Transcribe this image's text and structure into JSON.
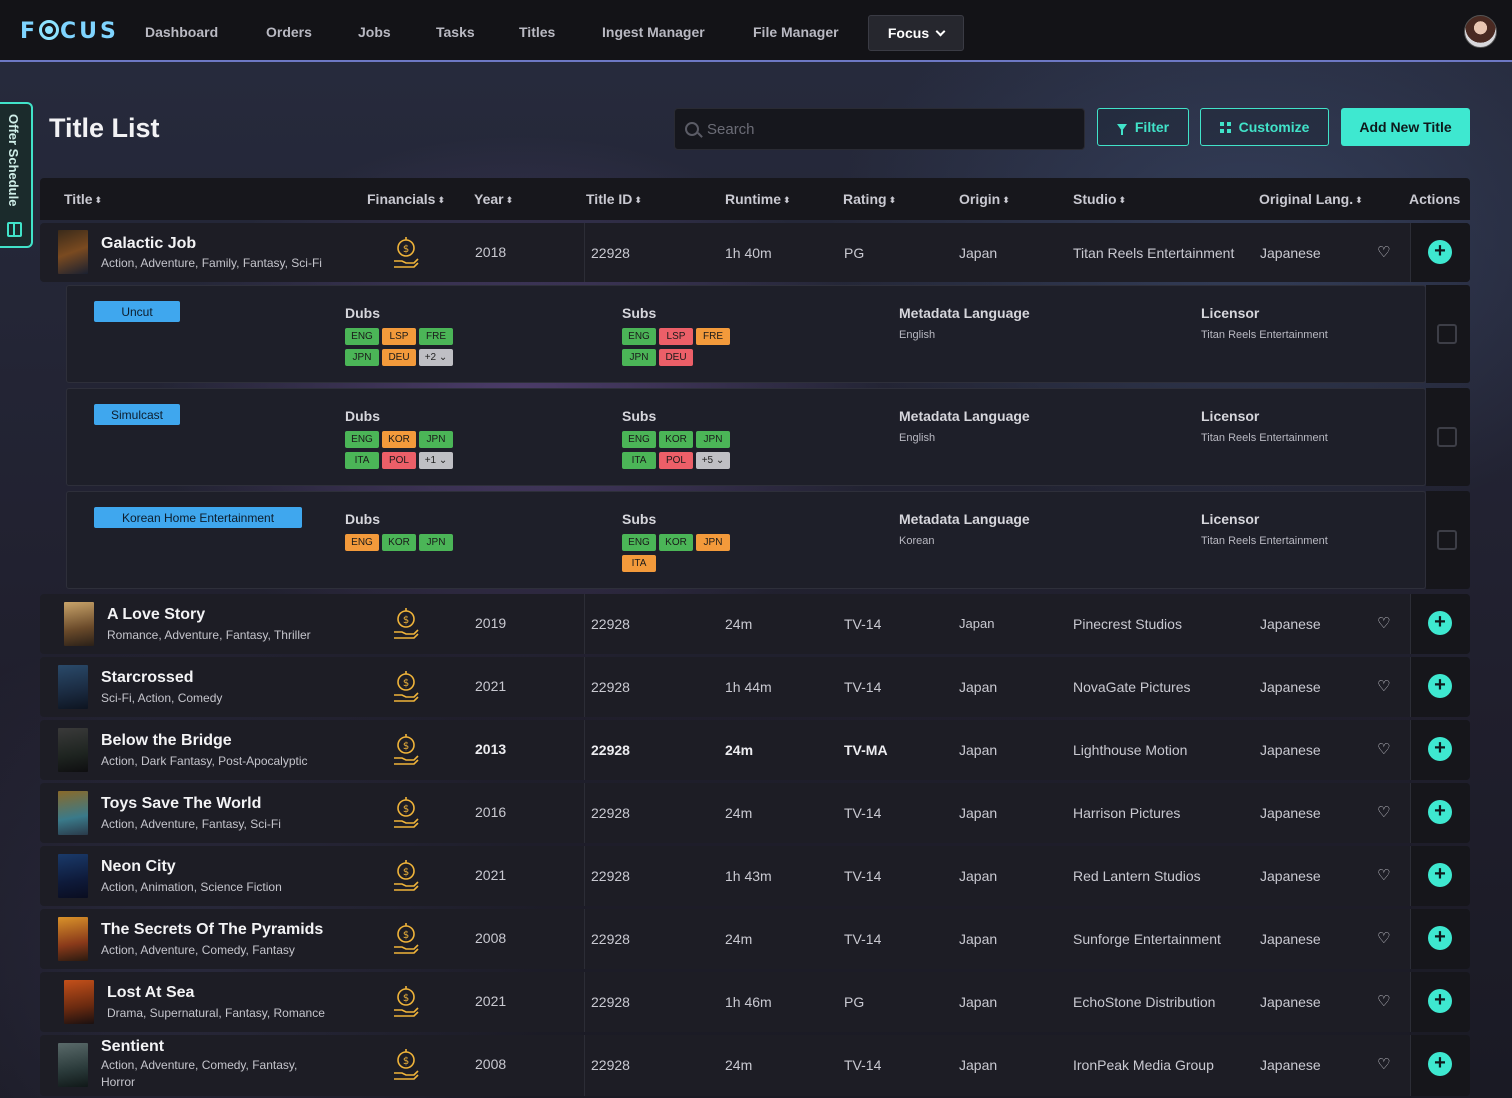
{
  "app": {
    "logo": "FOCUS"
  },
  "nav": {
    "items": [
      "Dashboard",
      "Orders",
      "Jobs",
      "Tasks",
      "Titles",
      "Ingest Manager",
      "File Manager"
    ],
    "active": "Focus"
  },
  "side_tab": {
    "label": "Offer Schedule"
  },
  "page": {
    "title": "Title List"
  },
  "search": {
    "placeholder": "Search"
  },
  "toolbar": {
    "filter": "Filter",
    "customize": "Customize",
    "add": "Add New Title"
  },
  "columns": [
    "Title",
    "Financials",
    "Year",
    "Title ID",
    "Runtime",
    "Rating",
    "Origin",
    "Studio",
    "Original Lang.",
    "Actions"
  ],
  "expanded": {
    "title": "Galactic Job",
    "genres": "Action, Adventure, Family, Fantasy, Sci-Fi",
    "year": "2018",
    "title_id": "22928",
    "runtime": "1h 40m",
    "rating": "PG",
    "origin": "Japan",
    "studio": "Titan Reels Entertainment",
    "lang": "Japanese",
    "offers": [
      {
        "label": "Uncut",
        "dubs_label": "Dubs",
        "dubs": [
          {
            "t": "ENG",
            "c": "g"
          },
          {
            "t": "LSP",
            "c": "o"
          },
          {
            "t": "FRE",
            "c": "g"
          },
          {
            "t": "JPN",
            "c": "g"
          },
          {
            "t": "DEU",
            "c": "o"
          },
          {
            "t": "+2 ⌄",
            "c": "more"
          }
        ],
        "subs_label": "Subs",
        "subs": [
          {
            "t": "ENG",
            "c": "g"
          },
          {
            "t": "LSP",
            "c": "r"
          },
          {
            "t": "FRE",
            "c": "o"
          },
          {
            "t": "JPN",
            "c": "g"
          },
          {
            "t": "DEU",
            "c": "r"
          }
        ],
        "meta_label": "Metadata Language",
        "meta": "English",
        "licensor_label": "Licensor",
        "licensor": "Titan Reels Entertainment"
      },
      {
        "label": "Simulcast",
        "dubs_label": "Dubs",
        "dubs": [
          {
            "t": "ENG",
            "c": "g"
          },
          {
            "t": "KOR",
            "c": "o"
          },
          {
            "t": "JPN",
            "c": "g"
          },
          {
            "t": "ITA",
            "c": "g"
          },
          {
            "t": "POL",
            "c": "r"
          },
          {
            "t": "+1 ⌄",
            "c": "more"
          }
        ],
        "subs_label": "Subs",
        "subs": [
          {
            "t": "ENG",
            "c": "g"
          },
          {
            "t": "KOR",
            "c": "g"
          },
          {
            "t": "JPN",
            "c": "g"
          },
          {
            "t": "ITA",
            "c": "g"
          },
          {
            "t": "POL",
            "c": "r"
          },
          {
            "t": "+5 ⌄",
            "c": "more"
          }
        ],
        "meta_label": "Metadata Language",
        "meta": "English",
        "licensor_label": "Licensor",
        "licensor": "Titan Reels Entertainment"
      },
      {
        "label": "Korean Home Entertainment",
        "dubs_label": "Dubs",
        "dubs": [
          {
            "t": "ENG",
            "c": "o"
          },
          {
            "t": "KOR",
            "c": "g"
          },
          {
            "t": "JPN",
            "c": "g"
          }
        ],
        "subs_label": "Subs",
        "subs": [
          {
            "t": "ENG",
            "c": "g"
          },
          {
            "t": "KOR",
            "c": "g"
          },
          {
            "t": "JPN",
            "c": "o"
          },
          {
            "t": "ITA",
            "c": "o"
          }
        ],
        "meta_label": "Metadata Language",
        "meta": "Korean",
        "licensor_label": "Licensor",
        "licensor": "Titan Reels Entertainment"
      }
    ]
  },
  "rows": [
    {
      "title": "A Love Story",
      "genres": "Romance, Adventure, Fantasy, Thriller",
      "year": "2019",
      "title_id": "22928",
      "runtime": "24m",
      "rating": "TV-14",
      "origin": "Japan",
      "studio": "Pinecrest Studios",
      "lang": "Japanese"
    },
    {
      "title": "Starcrossed",
      "genres": "Sci-Fi, Action, Comedy",
      "year": "2021",
      "title_id": "22928",
      "runtime": "1h 44m",
      "rating": "TV-14",
      "origin": "Japan",
      "studio": "NovaGate Pictures",
      "lang": "Japanese"
    },
    {
      "title": "Below the Bridge",
      "genres": "Action, Dark Fantasy, Post-Apocalyptic",
      "year": "2013",
      "title_id": "22928",
      "runtime": "24m",
      "rating": "TV-MA",
      "origin": "Japan",
      "studio": "Lighthouse Motion",
      "lang": "Japanese"
    },
    {
      "title": "Toys Save The World",
      "genres": "Action, Adventure, Fantasy, Sci-Fi",
      "year": "2016",
      "title_id": "22928",
      "runtime": "24m",
      "rating": "TV-14",
      "origin": "Japan",
      "studio": "Harrison Pictures",
      "lang": "Japanese"
    },
    {
      "title": "Neon City",
      "genres": "Action, Animation, Science Fiction",
      "year": "2021",
      "title_id": "22928",
      "runtime": "1h 43m",
      "rating": "TV-14",
      "origin": "Japan",
      "studio": "Red Lantern Studios",
      "lang": "Japanese"
    },
    {
      "title": "The Secrets Of The Pyramids",
      "genres": "Action, Adventure, Comedy, Fantasy",
      "year": "2008",
      "title_id": "22928",
      "runtime": "24m",
      "rating": "TV-14",
      "origin": "Japan",
      "studio": "Sunforge Entertainment",
      "lang": "Japanese"
    },
    {
      "title": "Lost At Sea",
      "genres": "Drama, Supernatural, Fantasy, Romance",
      "year": "2021",
      "title_id": "22928",
      "runtime": "1h 46m",
      "rating": "PG",
      "origin": "Japan",
      "studio": "EchoStone Distribution",
      "lang": "Japanese"
    },
    {
      "title": "Sentient",
      "genres": "Action, Adventure, Comedy, Fantasy, Horror",
      "year": "2008",
      "title_id": "22928",
      "runtime": "24m",
      "rating": "TV-14",
      "origin": "Japan",
      "studio": "IronPeak Media Group",
      "lang": "Japanese"
    }
  ],
  "colors": {
    "accent": "#3ee8d0",
    "chip_green": "#4bb557",
    "chip_orange": "#f39a3b",
    "chip_red": "#ec5f68",
    "badge_blue": "#3fa7ee"
  }
}
